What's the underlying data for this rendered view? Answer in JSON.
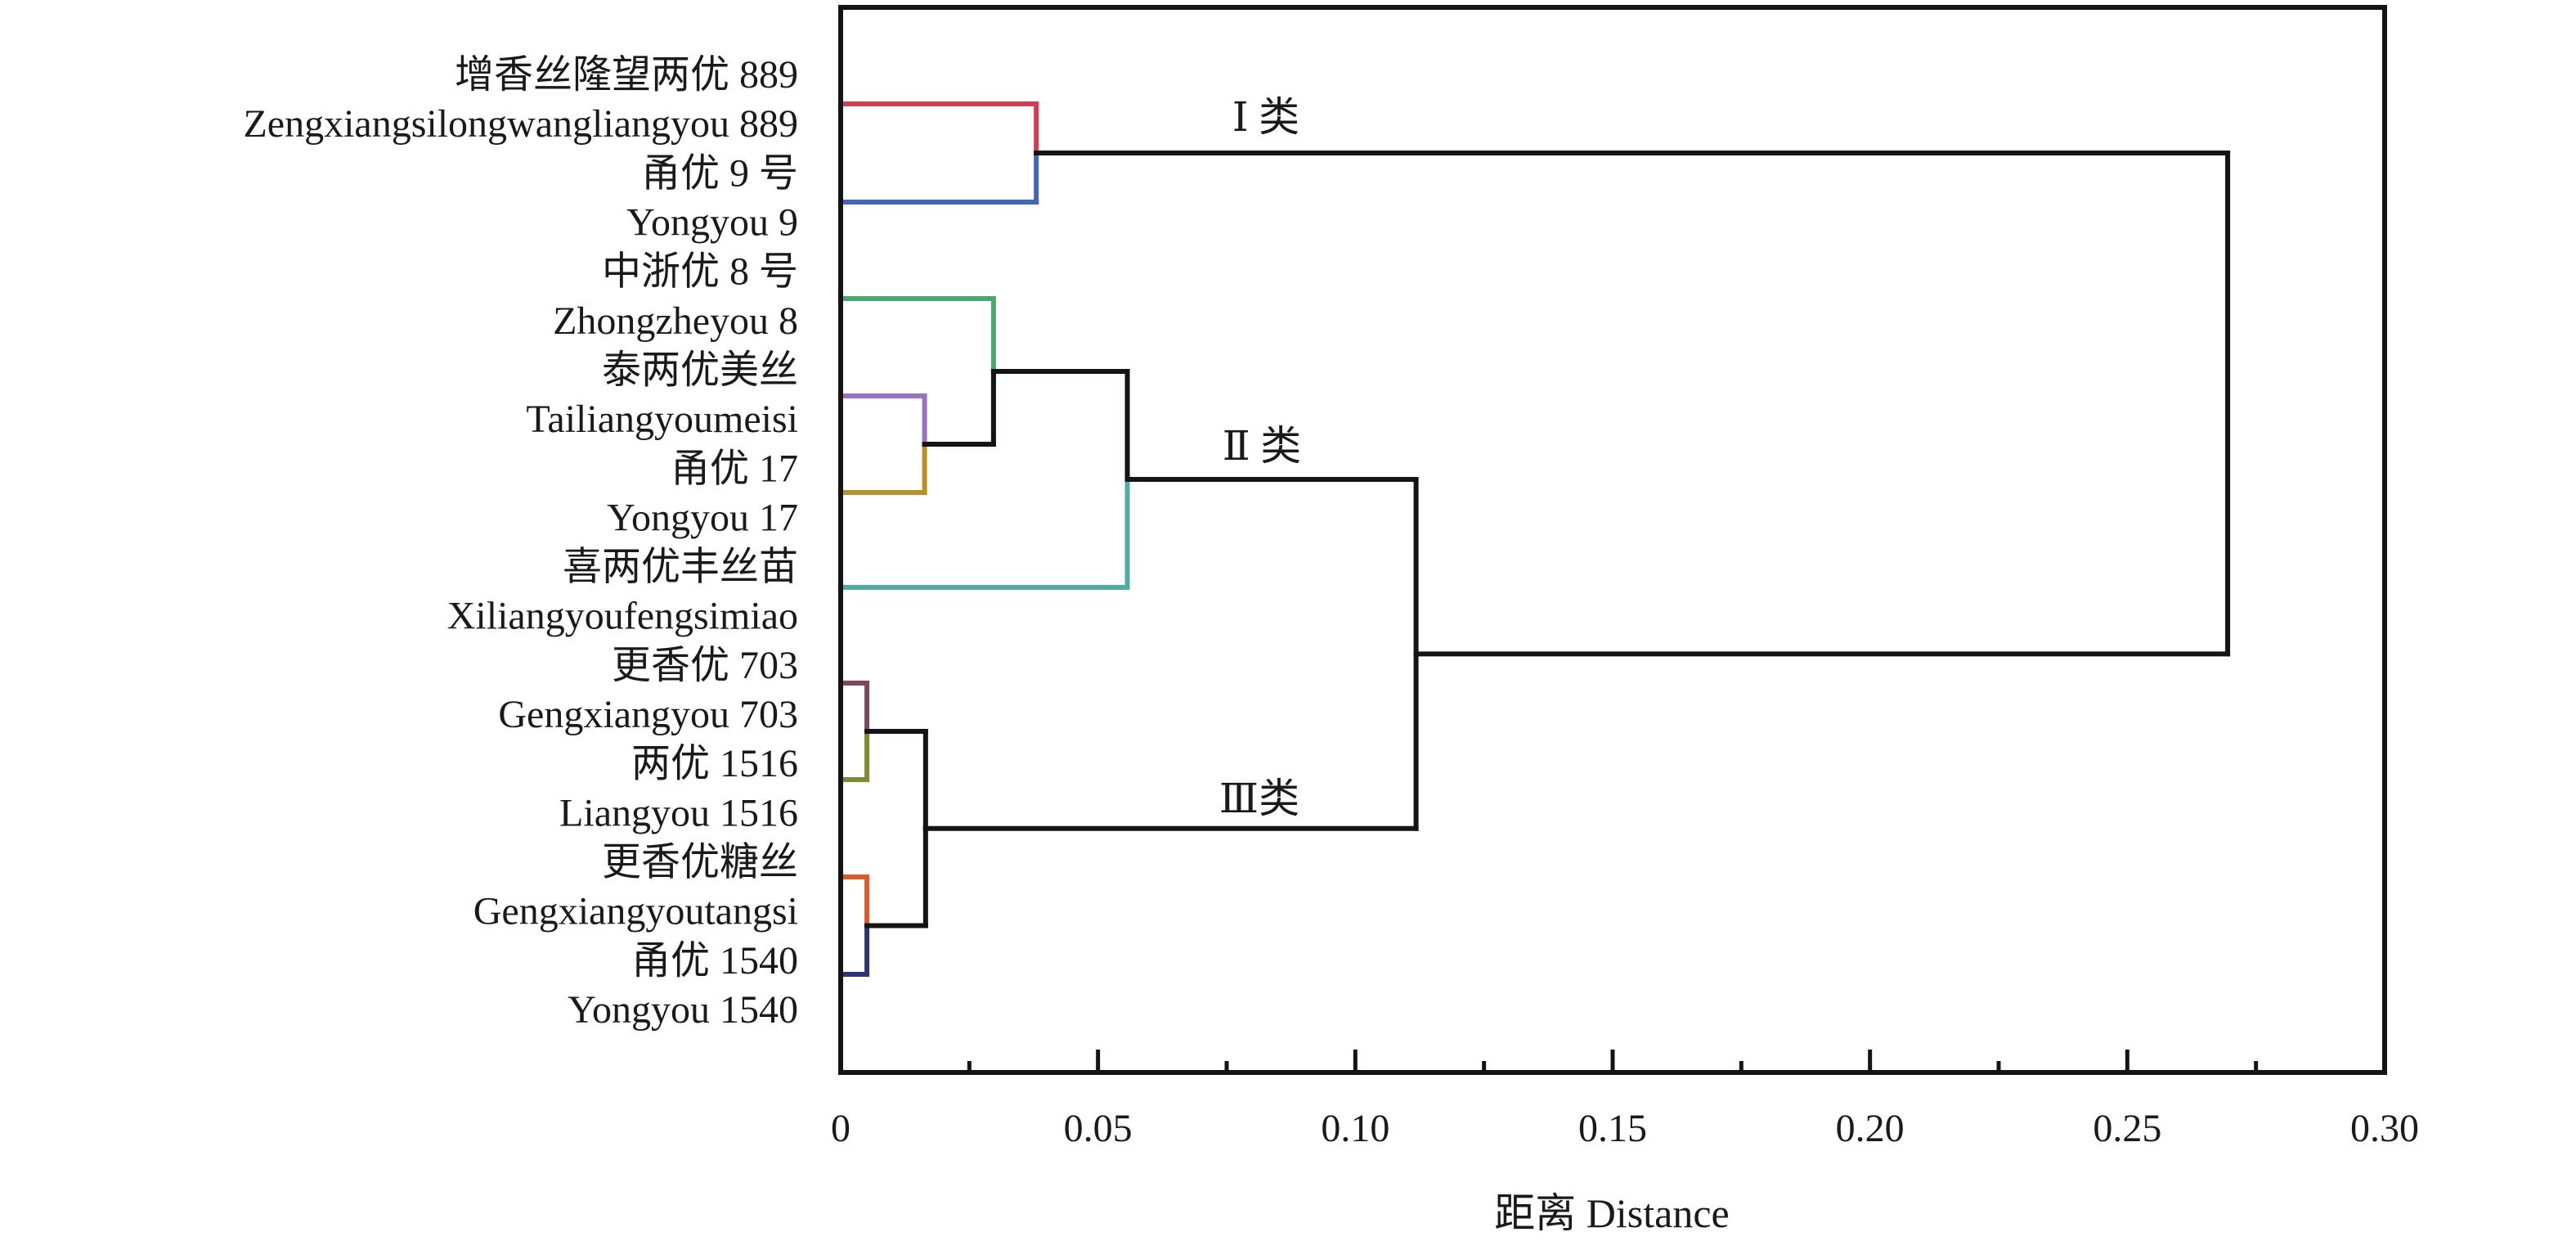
{
  "chart_data": {
    "type": "dendrogram",
    "title": "",
    "xlabel": "距离 Distance",
    "ylabel": "",
    "xlim": [
      0,
      0.3
    ],
    "x_ticks": [
      "0",
      "0.05",
      "0.10",
      "0.15",
      "0.20",
      "0.25",
      "0.30"
    ],
    "x_tick_values": [
      0,
      0.05,
      0.1,
      0.15,
      0.2,
      0.25,
      0.3
    ],
    "minor_tick_step": 0.025,
    "grid": false,
    "leaves": [
      {
        "id": "L1",
        "name_cn": "增香丝隆望两优 889",
        "name_en": "Zengxiangsilongwangliangyou 889",
        "color": "#cc4055"
      },
      {
        "id": "L2",
        "name_cn": "甬优 9 号",
        "name_en": "Yongyou 9",
        "color": "#4466b0"
      },
      {
        "id": "L3",
        "name_cn": "中浙优 8 号",
        "name_en": "Zhongzheyou 8",
        "color": "#4fa672"
      },
      {
        "id": "L4",
        "name_cn": "泰两优美丝",
        "name_en": "Tailiangyoumeisi",
        "color": "#9a72c0"
      },
      {
        "id": "L5",
        "name_cn": "甬优 17",
        "name_en": "Yongyou 17",
        "color": "#b8902a"
      },
      {
        "id": "L6",
        "name_cn": "喜两优丰丝苗",
        "name_en": "Xiliangyoufengsimiao",
        "color": "#52aaa5"
      },
      {
        "id": "L7",
        "name_cn": "更香优 703",
        "name_en": "Gengxiangyou 703",
        "color": "#7a4a5a"
      },
      {
        "id": "L8",
        "name_cn": "两优 1516",
        "name_en": "Liangyou 1516",
        "color": "#7f8a30"
      },
      {
        "id": "L9",
        "name_cn": "更香优糖丝",
        "name_en": "Gengxiangyoutangsi",
        "color": "#dc5a2a"
      },
      {
        "id": "L10",
        "name_cn": "甬优 1540",
        "name_en": "Yongyou 1540",
        "color": "#2d3570"
      }
    ],
    "merges": [
      {
        "id": "M1",
        "left": "L1",
        "right": "L2",
        "distance": 0.038,
        "color_split": true
      },
      {
        "id": "M2",
        "left": "L4",
        "right": "L5",
        "distance": 0.0163,
        "color_split": true
      },
      {
        "id": "M3",
        "left": "L3",
        "right": "M2",
        "distance": 0.0297
      },
      {
        "id": "M4",
        "left": "M3",
        "right": "L6",
        "distance": 0.0557
      },
      {
        "id": "M5",
        "left": "L7",
        "right": "L8",
        "distance": 0.0051,
        "color_split": true
      },
      {
        "id": "M6",
        "left": "L9",
        "right": "L10",
        "distance": 0.0051,
        "color_split": true
      },
      {
        "id": "M7",
        "left": "M5",
        "right": "M6",
        "distance": 0.0165
      },
      {
        "id": "M8",
        "left": "M4",
        "right": "M7",
        "distance": 0.1118
      },
      {
        "id": "M9",
        "left": "M1",
        "right": "M8",
        "distance": 0.2695
      }
    ],
    "cluster_labels": [
      {
        "label": "Ⅰ 类",
        "near_merge": "M1"
      },
      {
        "label": "Ⅱ 类",
        "near_merge": "M4"
      },
      {
        "label": "Ⅲ类",
        "near_merge": "M7"
      }
    ],
    "line_color": "#141414"
  }
}
